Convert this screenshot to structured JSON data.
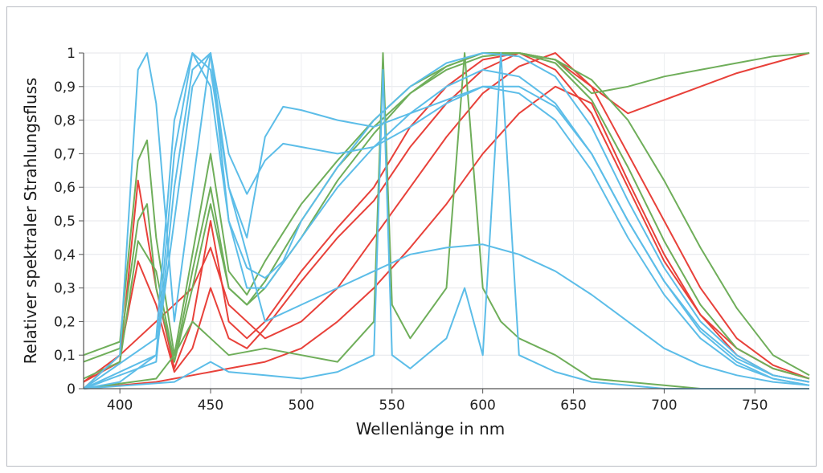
{
  "chart_data": {
    "type": "line",
    "title": "",
    "xlabel": "Wellenlänge in nm",
    "ylabel": "Relativer spektraler Strahlungsfluss",
    "xlim": [
      380,
      780
    ],
    "ylim": [
      0,
      1
    ],
    "x_ticks": [
      400,
      450,
      500,
      550,
      600,
      650,
      700,
      750
    ],
    "y_ticks": [
      0,
      0.1,
      0.2,
      0.3,
      0.4,
      0.5,
      0.6,
      0.7,
      0.8,
      0.9,
      1
    ],
    "y_tick_labels": [
      "0",
      "0,1",
      "0,2",
      "0,3",
      "0,4",
      "0,5",
      "0,6",
      "0,7",
      "0,8",
      "0,9",
      "1"
    ],
    "grid": true,
    "legend": "none",
    "series_colors": {
      "red": "#e8413a",
      "green": "#6fae5a",
      "blue": "#5cbde8"
    },
    "series": [
      {
        "color": "red",
        "x": [
          380,
          400,
          410,
          420,
          430,
          440,
          450,
          460,
          470,
          480,
          500,
          520,
          540,
          560,
          580,
          600,
          620,
          640,
          660,
          680,
          700,
          720,
          740,
          760,
          780
        ],
        "y": [
          0.02,
          0.1,
          0.38,
          0.25,
          0.05,
          0.12,
          0.3,
          0.15,
          0.12,
          0.18,
          0.32,
          0.45,
          0.56,
          0.72,
          0.85,
          0.95,
          1.0,
          0.98,
          0.9,
          0.82,
          0.86,
          0.9,
          0.94,
          0.97,
          1.0
        ]
      },
      {
        "color": "red",
        "x": [
          380,
          400,
          410,
          420,
          430,
          440,
          450,
          460,
          470,
          480,
          500,
          520,
          540,
          560,
          580,
          600,
          620,
          640,
          660,
          680,
          700,
          720,
          740,
          760,
          780
        ],
        "y": [
          0.02,
          0.08,
          0.62,
          0.3,
          0.06,
          0.2,
          0.5,
          0.2,
          0.15,
          0.2,
          0.35,
          0.48,
          0.6,
          0.78,
          0.9,
          0.98,
          1.0,
          0.95,
          0.82,
          0.6,
          0.38,
          0.22,
          0.12,
          0.06,
          0.03
        ]
      },
      {
        "color": "red",
        "x": [
          380,
          420,
          440,
          450,
          460,
          480,
          500,
          520,
          540,
          560,
          580,
          600,
          620,
          640,
          660,
          680,
          700,
          720,
          740,
          760,
          780
        ],
        "y": [
          0.0,
          0.02,
          0.04,
          0.05,
          0.06,
          0.08,
          0.12,
          0.2,
          0.3,
          0.42,
          0.55,
          0.7,
          0.82,
          0.9,
          0.85,
          0.62,
          0.4,
          0.22,
          0.1,
          0.04,
          0.02
        ]
      },
      {
        "color": "red",
        "x": [
          380,
          440,
          450,
          460,
          480,
          500,
          520,
          540,
          560,
          580,
          600,
          620,
          640,
          660,
          680,
          700,
          720,
          740,
          760,
          780
        ],
        "y": [
          0.0,
          0.3,
          0.42,
          0.25,
          0.15,
          0.2,
          0.3,
          0.45,
          0.6,
          0.75,
          0.88,
          0.96,
          1.0,
          0.9,
          0.7,
          0.5,
          0.3,
          0.15,
          0.07,
          0.03
        ]
      },
      {
        "color": "green",
        "x": [
          380,
          400,
          410,
          415,
          420,
          430,
          440,
          450,
          460,
          470,
          480,
          500,
          520,
          540,
          560,
          580,
          600,
          620,
          640,
          660,
          680,
          700,
          720,
          740,
          760,
          780
        ],
        "y": [
          0.1,
          0.14,
          0.68,
          0.74,
          0.45,
          0.1,
          0.4,
          0.7,
          0.35,
          0.28,
          0.38,
          0.55,
          0.68,
          0.8,
          0.9,
          0.96,
          1.0,
          1.0,
          0.98,
          0.88,
          0.9,
          0.93,
          0.95,
          0.97,
          0.99,
          1.0
        ]
      },
      {
        "color": "green",
        "x": [
          380,
          400,
          410,
          415,
          420,
          430,
          440,
          450,
          460,
          470,
          480,
          500,
          520,
          540,
          560,
          580,
          600,
          620,
          640,
          660,
          680,
          700,
          720,
          740,
          760,
          780
        ],
        "y": [
          0.08,
          0.12,
          0.5,
          0.55,
          0.3,
          0.08,
          0.35,
          0.6,
          0.3,
          0.25,
          0.32,
          0.5,
          0.66,
          0.78,
          0.88,
          0.95,
          0.99,
          1.0,
          0.97,
          0.86,
          0.66,
          0.44,
          0.25,
          0.12,
          0.06,
          0.03
        ]
      },
      {
        "color": "green",
        "x": [
          380,
          420,
          430,
          440,
          450,
          460,
          480,
          500,
          520,
          540,
          545,
          550,
          560,
          580,
          590,
          600,
          610,
          620,
          640,
          660,
          680,
          700,
          720,
          740,
          760,
          780
        ],
        "y": [
          0.0,
          0.03,
          0.1,
          0.2,
          0.15,
          0.1,
          0.12,
          0.1,
          0.08,
          0.2,
          1.0,
          0.25,
          0.15,
          0.3,
          1.0,
          0.3,
          0.2,
          0.15,
          0.1,
          0.03,
          0.02,
          0.01,
          0.0,
          0.0,
          0.0,
          0.0
        ]
      },
      {
        "color": "green",
        "x": [
          380,
          400,
          410,
          420,
          430,
          440,
          450,
          460,
          470,
          480,
          500,
          520,
          540,
          560,
          580,
          600,
          620,
          640,
          660,
          680,
          700,
          720,
          740,
          760,
          780
        ],
        "y": [
          0.03,
          0.08,
          0.44,
          0.35,
          0.08,
          0.3,
          0.55,
          0.3,
          0.25,
          0.3,
          0.45,
          0.62,
          0.76,
          0.88,
          0.96,
          1.0,
          1.0,
          0.98,
          0.92,
          0.8,
          0.62,
          0.42,
          0.24,
          0.1,
          0.04
        ]
      },
      {
        "color": "blue",
        "x": [
          380,
          400,
          410,
          415,
          420,
          430,
          440,
          450,
          460,
          470,
          480,
          500,
          520,
          540,
          560,
          580,
          600,
          620,
          640,
          660,
          680,
          700,
          720,
          740,
          760,
          780
        ],
        "y": [
          0.0,
          0.1,
          0.95,
          1.0,
          0.85,
          0.2,
          0.6,
          1.0,
          0.5,
          0.3,
          0.3,
          0.45,
          0.6,
          0.72,
          0.82,
          0.9,
          0.95,
          0.93,
          0.85,
          0.7,
          0.5,
          0.32,
          0.18,
          0.09,
          0.04,
          0.02
        ]
      },
      {
        "color": "blue",
        "x": [
          380,
          420,
          430,
          440,
          450,
          460,
          470,
          480,
          490,
          500,
          520,
          540,
          560,
          580,
          600,
          620,
          640,
          660,
          680,
          700,
          720,
          740,
          760,
          780
        ],
        "y": [
          0.0,
          0.15,
          0.8,
          1.0,
          0.9,
          0.5,
          0.36,
          0.33,
          0.38,
          0.5,
          0.66,
          0.8,
          0.9,
          0.97,
          1.0,
          0.99,
          0.93,
          0.78,
          0.56,
          0.36,
          0.2,
          0.1,
          0.04,
          0.02
        ]
      },
      {
        "color": "blue",
        "x": [
          380,
          420,
          430,
          440,
          450,
          460,
          470,
          480,
          490,
          500,
          520,
          540,
          560,
          580,
          600,
          620,
          640,
          660,
          680,
          700,
          720,
          740,
          760,
          780
        ],
        "y": [
          0.0,
          0.1,
          0.7,
          1.0,
          0.95,
          0.6,
          0.45,
          0.75,
          0.84,
          0.83,
          0.8,
          0.78,
          0.82,
          0.86,
          0.9,
          0.88,
          0.8,
          0.65,
          0.45,
          0.28,
          0.15,
          0.07,
          0.03,
          0.01
        ]
      },
      {
        "color": "blue",
        "x": [
          380,
          420,
          430,
          440,
          450,
          460,
          470,
          480,
          490,
          500,
          520,
          540,
          560,
          580,
          600,
          620,
          640,
          660,
          680,
          700,
          720,
          740,
          760,
          780
        ],
        "y": [
          0.0,
          0.08,
          0.6,
          0.95,
          1.0,
          0.7,
          0.58,
          0.68,
          0.73,
          0.72,
          0.7,
          0.72,
          0.78,
          0.85,
          0.9,
          0.9,
          0.84,
          0.7,
          0.5,
          0.32,
          0.17,
          0.08,
          0.03,
          0.01
        ]
      },
      {
        "color": "blue",
        "x": [
          380,
          400,
          420,
          440,
          450,
          460,
          480,
          500,
          520,
          540,
          560,
          580,
          600,
          620,
          640,
          660,
          680,
          700,
          720,
          740,
          760,
          780
        ],
        "y": [
          0.0,
          0.02,
          0.1,
          0.9,
          1.0,
          0.6,
          0.2,
          0.25,
          0.3,
          0.35,
          0.4,
          0.42,
          0.43,
          0.4,
          0.35,
          0.28,
          0.2,
          0.12,
          0.07,
          0.04,
          0.02,
          0.01
        ]
      },
      {
        "color": "blue",
        "x": [
          380,
          430,
          440,
          450,
          460,
          480,
          500,
          520,
          540,
          545,
          550,
          560,
          580,
          590,
          600,
          610,
          620,
          640,
          660,
          680,
          700,
          720,
          740,
          760,
          780
        ],
        "y": [
          0.0,
          0.02,
          0.05,
          0.08,
          0.05,
          0.04,
          0.03,
          0.05,
          0.1,
          0.95,
          0.1,
          0.06,
          0.15,
          0.3,
          0.1,
          1.0,
          0.1,
          0.05,
          0.02,
          0.01,
          0.0,
          0.0,
          0.0,
          0.0,
          0.0
        ]
      }
    ]
  }
}
